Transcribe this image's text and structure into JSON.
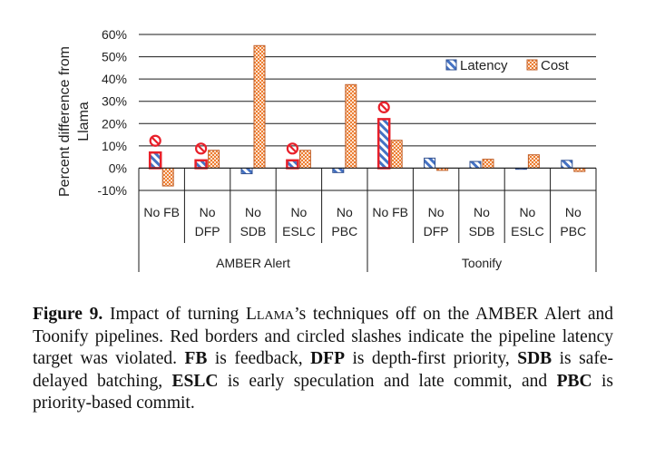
{
  "chart_data": {
    "type": "bar",
    "ylabel": "Percent difference from Llama",
    "ylim": [
      -10,
      60
    ],
    "yticks": [
      "-10%",
      "0%",
      "10%",
      "20%",
      "30%",
      "40%",
      "50%",
      "60%"
    ],
    "ytick_values": [
      -10,
      0,
      10,
      20,
      30,
      40,
      50,
      60
    ],
    "grid": true,
    "legend_position": "top-right",
    "groups": [
      "AMBER Alert",
      "Toonify"
    ],
    "categories": [
      "No FB",
      "No DFP",
      "No SDB",
      "No ESLC",
      "No PBC",
      "No FB",
      "No DFP",
      "No SDB",
      "No ESLC",
      "No PBC"
    ],
    "category_lines": [
      [
        "No FB"
      ],
      [
        "No",
        "DFP"
      ],
      [
        "No",
        "SDB"
      ],
      [
        "No",
        "ESLC"
      ],
      [
        "No",
        "PBC"
      ],
      [
        "No FB"
      ],
      [
        "No",
        "DFP"
      ],
      [
        "No",
        "SDB"
      ],
      [
        "No",
        "ESLC"
      ],
      [
        "No",
        "PBC"
      ]
    ],
    "series": [
      {
        "name": "Latency",
        "values": [
          7,
          3.5,
          -2.5,
          3.5,
          -2,
          22,
          4.5,
          3,
          -0.5,
          3.5
        ]
      },
      {
        "name": "Cost",
        "values": [
          -8,
          8,
          55,
          8,
          37.5,
          12.5,
          -1,
          4,
          6,
          -1.5
        ]
      }
    ],
    "latency_target_violated": [
      true,
      true,
      false,
      true,
      false,
      true,
      false,
      false,
      false,
      false
    ]
  },
  "colors": {
    "latency_fill": "#4472c4",
    "cost_fill": "#ed7d31",
    "violation": "#e8202a",
    "grid": "#1a1a1a"
  },
  "caption": {
    "label": "Figure 9.",
    "t1": " Impact of turning ",
    "llama": "Llama",
    "t2": "’s techniques off on the AMBER Alert and Toonify pipelines. Red borders and circled slashes indicate the pipeline latency target was violated. ",
    "fb": "FB",
    "t3": " is feedback, ",
    "dfp": "DFP",
    "t4": " is depth-first priority, ",
    "sdb": "SDB",
    "t5": " is safe-delayed batching, ",
    "eslc": "ESLC",
    "t6": " is early speculation and late commit, and ",
    "pbc": "PBC",
    "t7": " is priority-based commit."
  }
}
